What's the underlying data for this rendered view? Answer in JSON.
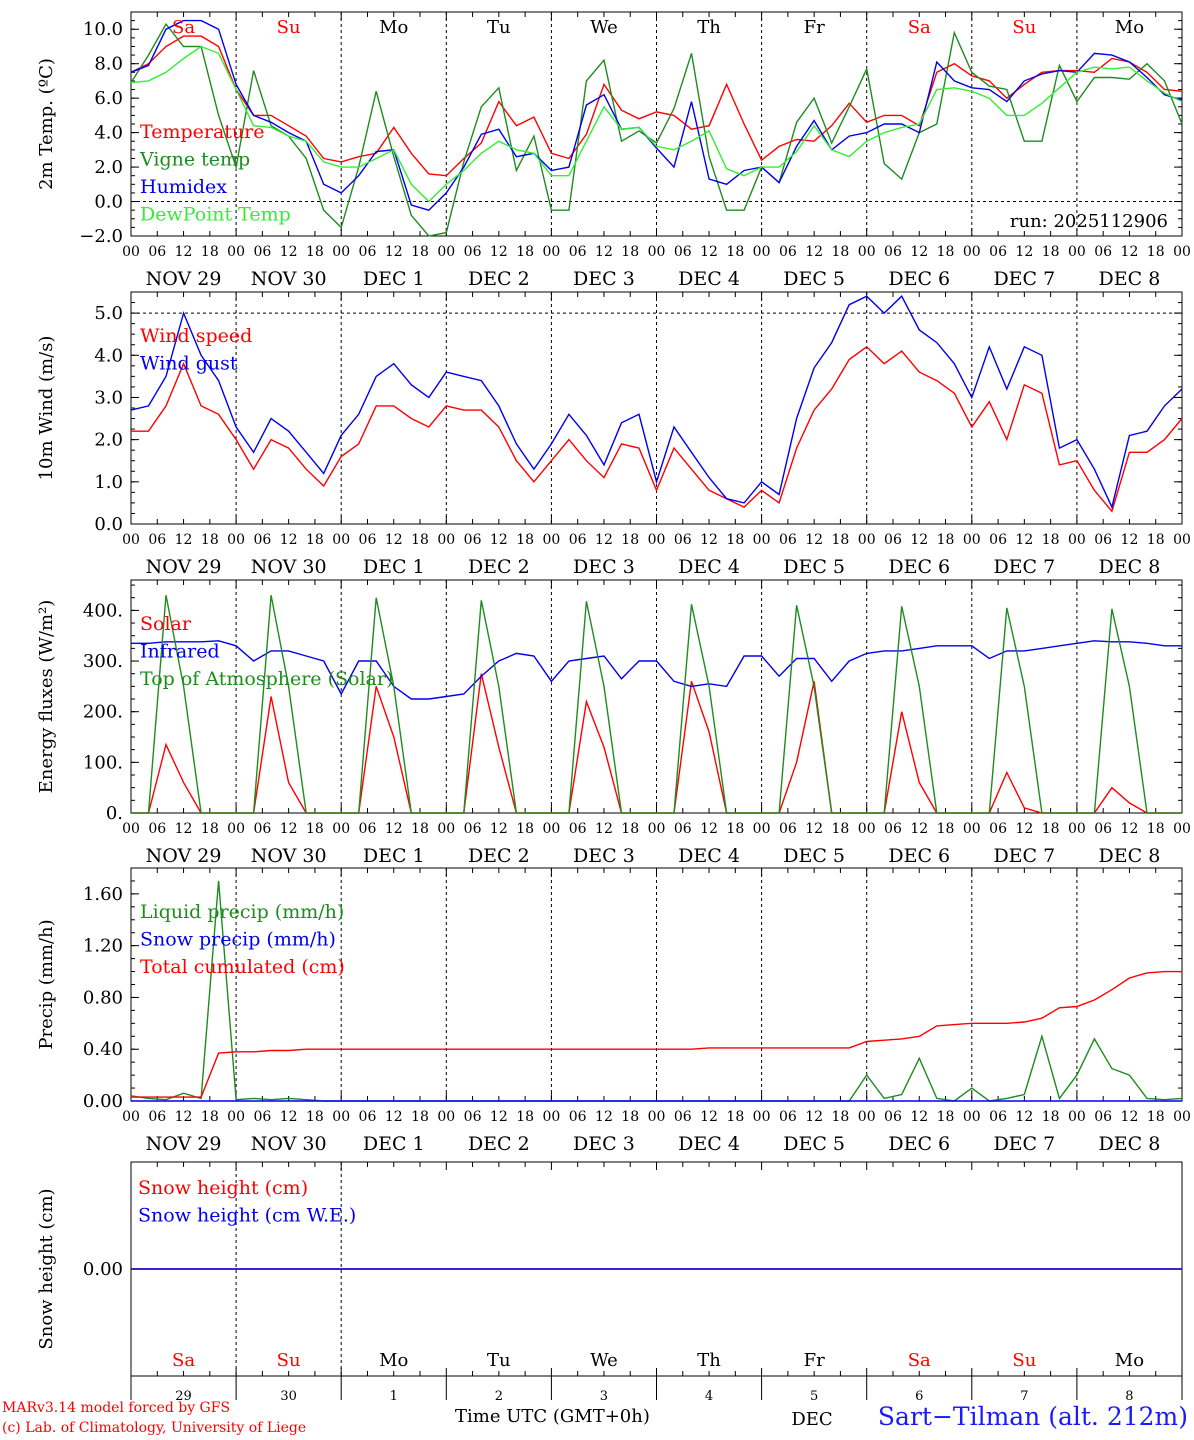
{
  "day_names": [
    {
      "label": "Sa",
      "color": "#ff0000"
    },
    {
      "label": "Su",
      "color": "#ff0000"
    },
    {
      "label": "Mo",
      "color": "#000000"
    },
    {
      "label": "Tu",
      "color": "#000000"
    },
    {
      "label": "We",
      "color": "#000000"
    },
    {
      "label": "Th",
      "color": "#000000"
    },
    {
      "label": "Fr",
      "color": "#000000"
    },
    {
      "label": "Sa",
      "color": "#ff0000"
    },
    {
      "label": "Su",
      "color": "#ff0000"
    },
    {
      "label": "Mo",
      "color": "#000000"
    }
  ],
  "date_labels": [
    "NOV 29",
    "NOV 30",
    "DEC  1",
    "DEC  2",
    "DEC  3",
    "DEC  4",
    "DEC  5",
    "DEC  6",
    "DEC  7",
    "DEC  8"
  ],
  "date_numbers": [
    "29",
    "30",
    "1",
    "2",
    "3",
    "4",
    "5",
    "6",
    "7",
    "8"
  ],
  "hour_labels": [
    "00",
    "06",
    "12",
    "18"
  ],
  "colors": {
    "red": "#ff0000",
    "green": "#1e8c1e",
    "blue": "#0000ee",
    "lightgreen": "#33ee33"
  },
  "chart_data": [
    {
      "type": "line",
      "id": "temp",
      "ylabel": "2m Temp. (ºC)",
      "ylim": [
        -2,
        11
      ],
      "yticks": [
        -2,
        0,
        2,
        4,
        6,
        8,
        10
      ],
      "ytick_labels": [
        "−2.0",
        "0.0",
        "2.0",
        "4.0",
        "6.0",
        "8.0",
        "10.0"
      ],
      "dashed_y": [
        0
      ],
      "x_hours_step": 6,
      "annotation": "run: 2025112906",
      "series": [
        {
          "name": "Temperature",
          "color": "#ff0000",
          "values": [
            7.5,
            8,
            9,
            9.6,
            9.6,
            9,
            6.5,
            5,
            5,
            4.4,
            3.8,
            2.5,
            2.3,
            2.6,
            2.8,
            4.3,
            2.8,
            1.6,
            1.5,
            2.5,
            3.4,
            5.8,
            4.4,
            4.9,
            2.8,
            2.5,
            3.9,
            6.8,
            5.3,
            4.8,
            5.2,
            5,
            4.2,
            4.4,
            6.8,
            4.5,
            2.4,
            3.2,
            3.6,
            3.5,
            4.4,
            5.7,
            4.6,
            5,
            5,
            4.4,
            7.5,
            8,
            7.3,
            7,
            6,
            6.8,
            7.5,
            7.6,
            7.6,
            7.5,
            8.3,
            8.1,
            7.5,
            6.5,
            6.4
          ]
        },
        {
          "name": "Vigne temp",
          "color": "#1e8c1e",
          "values": [
            6.9,
            8.5,
            10.3,
            9,
            9,
            5,
            2,
            7.6,
            4.4,
            3.8,
            2.5,
            -0.5,
            -1.5,
            2,
            6.4,
            2.6,
            -0.8,
            -2.5,
            -1.8,
            2.3,
            5.5,
            6.6,
            1.8,
            3.8,
            -0.5,
            -0.5,
            7,
            8.2,
            3.5,
            4.1,
            3.4,
            5.4,
            8.6,
            2.6,
            -0.5,
            -0.5,
            2,
            1.1,
            4.6,
            6,
            3.4,
            5.5,
            7.7,
            2.2,
            1.3,
            4,
            4.5,
            9.8,
            7.5,
            6.7,
            6.5,
            3.5,
            3.5,
            7.9,
            5.8,
            7.2,
            7.2,
            7.1,
            8,
            7,
            4.5
          ]
        },
        {
          "name": "Humidex",
          "color": "#0000ee",
          "values": [
            7.5,
            7.9,
            10,
            10.5,
            10.5,
            10,
            6.8,
            5,
            4.6,
            4,
            3.5,
            1,
            0.5,
            1.5,
            2.9,
            3,
            -0.2,
            -0.5,
            0.5,
            2,
            3.9,
            4.2,
            2.6,
            2.8,
            1.8,
            2,
            5.6,
            6.2,
            4.2,
            4.3,
            3.1,
            2,
            5.8,
            1.3,
            1,
            1.8,
            2,
            1.1,
            3.2,
            4.7,
            3,
            3.8,
            4,
            4.5,
            4.5,
            4,
            8.1,
            7,
            6.6,
            6.5,
            5.8,
            7,
            7.4,
            7.6,
            7.5,
            8.6,
            8.5,
            8.1,
            7.2,
            6.2,
            5.9
          ]
        },
        {
          "name": "DewPoint Temp",
          "color": "#33ee33",
          "values": [
            6.9,
            7,
            7.5,
            8.3,
            9,
            8.6,
            6.5,
            4.4,
            4.3,
            3.8,
            3.5,
            2.3,
            2,
            2,
            2.5,
            3,
            1,
            0,
            1,
            1.8,
            2.8,
            3.5,
            3,
            2.8,
            1.5,
            1.5,
            3.5,
            5.5,
            4.2,
            4.3,
            3.2,
            3,
            3.5,
            4.1,
            1.9,
            1.5,
            2,
            2,
            2.9,
            4.4,
            3,
            2.6,
            3.5,
            4,
            4.3,
            4.5,
            6.5,
            6.6,
            6.4,
            6,
            5,
            5,
            5.7,
            6.6,
            7.5,
            7.8,
            7.7,
            7.8,
            7,
            6.3,
            5.8
          ]
        }
      ]
    },
    {
      "type": "line",
      "id": "wind",
      "ylabel": "10m Wind (m/s)",
      "ylim": [
        0,
        5.5
      ],
      "yticks": [
        0,
        1,
        2,
        3,
        4,
        5
      ],
      "ytick_labels": [
        "0.0",
        "1.0",
        "2.0",
        "3.0",
        "4.0",
        "5.0"
      ],
      "dashed_y": [
        5
      ],
      "x_hours_step": 6,
      "series": [
        {
          "name": "Wind speed",
          "color": "#ff0000",
          "values": [
            2.2,
            2.2,
            2.8,
            3.8,
            2.8,
            2.6,
            2,
            1.3,
            2,
            1.8,
            1.3,
            0.9,
            1.6,
            1.9,
            2.8,
            2.8,
            2.5,
            2.3,
            2.8,
            2.7,
            2.7,
            2.3,
            1.5,
            1,
            1.5,
            2,
            1.5,
            1.1,
            1.9,
            1.8,
            0.8,
            1.8,
            1.3,
            0.8,
            0.6,
            0.4,
            0.8,
            0.5,
            1.8,
            2.7,
            3.2,
            3.9,
            4.2,
            3.8,
            4.1,
            3.6,
            3.4,
            3.1,
            2.3,
            2.9,
            2,
            3.3,
            3.1,
            1.4,
            1.5,
            0.8,
            0.3,
            1.7,
            1.7,
            2,
            2.5
          ]
        },
        {
          "name": "Wind gust",
          "color": "#0000ee",
          "values": [
            2.7,
            2.8,
            3.5,
            5,
            4,
            3.4,
            2.3,
            1.7,
            2.5,
            2.2,
            1.7,
            1.2,
            2.1,
            2.6,
            3.5,
            3.8,
            3.3,
            3,
            3.6,
            3.5,
            3.4,
            2.8,
            1.9,
            1.3,
            1.9,
            2.6,
            2.1,
            1.4,
            2.4,
            2.6,
            1,
            2.3,
            1.7,
            1.1,
            0.6,
            0.5,
            1,
            0.7,
            2.5,
            3.7,
            4.3,
            5.2,
            5.4,
            5,
            5.4,
            4.6,
            4.3,
            3.8,
            3,
            4.2,
            3.2,
            4.2,
            4,
            1.8,
            2,
            1.3,
            0.4,
            2.1,
            2.2,
            2.8,
            3.2
          ]
        }
      ]
    },
    {
      "type": "line",
      "id": "flux",
      "ylabel": "Energy fluxes (W/m²)",
      "ylim": [
        0,
        460
      ],
      "yticks": [
        0,
        100,
        200,
        300,
        400
      ],
      "ytick_labels": [
        "0.",
        "100.",
        "200.",
        "300.",
        "400."
      ],
      "dashed_y": [],
      "x_hours_step": 6,
      "series": [
        {
          "name": "Solar",
          "color": "#ff0000",
          "values": [
            0,
            0,
            135,
            60,
            0,
            0,
            0,
            0,
            230,
            60,
            0,
            0,
            0,
            0,
            250,
            150,
            0,
            0,
            0,
            0,
            275,
            130,
            0,
            0,
            0,
            0,
            220,
            130,
            0,
            0,
            0,
            0,
            260,
            160,
            0,
            0,
            0,
            0,
            100,
            260,
            0,
            0,
            0,
            0,
            200,
            60,
            0,
            0,
            0,
            0,
            80,
            10,
            0,
            0,
            0,
            0,
            50,
            20,
            0,
            0,
            0
          ]
        },
        {
          "name": "Infrared",
          "color": "#0000ee",
          "values": [
            335,
            335,
            338,
            338,
            338,
            340,
            330,
            300,
            320,
            320,
            310,
            300,
            235,
            300,
            300,
            250,
            225,
            225,
            230,
            235,
            270,
            300,
            315,
            310,
            260,
            300,
            305,
            310,
            265,
            300,
            300,
            260,
            250,
            255,
            250,
            310,
            310,
            270,
            305,
            305,
            260,
            300,
            315,
            320,
            320,
            325,
            330,
            330,
            330,
            305,
            320,
            320,
            325,
            330,
            335,
            340,
            338,
            338,
            335,
            330,
            330
          ]
        },
        {
          "name": "Top of Atmosphere (Solar)",
          "color": "#1e8c1e",
          "values": [
            0,
            0,
            430,
            250,
            0,
            0,
            0,
            0,
            430,
            250,
            0,
            0,
            0,
            0,
            425,
            250,
            0,
            0,
            0,
            0,
            420,
            250,
            0,
            0,
            0,
            0,
            418,
            250,
            0,
            0,
            0,
            0,
            412,
            250,
            0,
            0,
            0,
            0,
            410,
            250,
            0,
            0,
            0,
            0,
            408,
            250,
            0,
            0,
            0,
            0,
            405,
            250,
            0,
            0,
            0,
            0,
            403,
            250,
            0,
            0,
            0
          ]
        }
      ]
    },
    {
      "type": "line",
      "id": "precip",
      "ylabel": "Precip (mm/h)",
      "ylim": [
        0,
        1.8
      ],
      "yticks": [
        0,
        0.4,
        0.8,
        1.2,
        1.6
      ],
      "ytick_labels": [
        "0.00",
        "0.40",
        "0.80",
        "1.20",
        "1.60"
      ],
      "dashed_y": [],
      "x_hours_step": 6,
      "series": [
        {
          "name": "Liquid precip (mm/h)",
          "color": "#1e8c1e",
          "values": [
            0.04,
            0.02,
            0.01,
            0.06,
            0.02,
            1.7,
            0.01,
            0.02,
            0.01,
            0.02,
            0.01,
            0,
            0,
            0,
            0,
            0,
            0,
            0,
            0,
            0,
            0,
            0,
            0,
            0,
            0,
            0,
            0,
            0,
            0,
            0,
            0,
            0,
            0,
            0,
            0,
            0,
            0,
            0,
            0,
            0,
            0,
            0,
            0.2,
            0.02,
            0.05,
            0.33,
            0.02,
            0,
            0.1,
            0,
            0.02,
            0.05,
            0.5,
            0.02,
            0.2,
            0.48,
            0.25,
            0.2,
            0.02,
            0.01,
            0.02
          ]
        },
        {
          "name": "Snow precip (mm/h)",
          "color": "#0000ee",
          "values": [
            0,
            0,
            0,
            0,
            0,
            0,
            0,
            0,
            0,
            0,
            0,
            0,
            0,
            0,
            0,
            0,
            0,
            0,
            0,
            0,
            0,
            0,
            0,
            0,
            0,
            0,
            0,
            0,
            0,
            0,
            0,
            0,
            0,
            0,
            0,
            0,
            0,
            0,
            0,
            0,
            0,
            0,
            0,
            0,
            0,
            0,
            0,
            0,
            0,
            0,
            0,
            0,
            0,
            0,
            0,
            0,
            0,
            0,
            0,
            0,
            0
          ]
        },
        {
          "name": "Total cumulated (cm)",
          "color": "#ff0000",
          "values": [
            0.03,
            0.03,
            0.03,
            0.03,
            0.03,
            0.37,
            0.38,
            0.38,
            0.39,
            0.39,
            0.4,
            0.4,
            0.4,
            0.4,
            0.4,
            0.4,
            0.4,
            0.4,
            0.4,
            0.4,
            0.4,
            0.4,
            0.4,
            0.4,
            0.4,
            0.4,
            0.4,
            0.4,
            0.4,
            0.4,
            0.4,
            0.4,
            0.4,
            0.41,
            0.41,
            0.41,
            0.41,
            0.41,
            0.41,
            0.41,
            0.41,
            0.41,
            0.46,
            0.47,
            0.48,
            0.5,
            0.58,
            0.59,
            0.6,
            0.6,
            0.6,
            0.61,
            0.64,
            0.72,
            0.73,
            0.78,
            0.86,
            0.95,
            0.99,
            1,
            1
          ]
        }
      ]
    },
    {
      "type": "line",
      "id": "snow",
      "ylabel": "Snow height (cm)",
      "ylim": [
        -1,
        1
      ],
      "yticks": [
        0
      ],
      "ytick_labels": [
        "0.00"
      ],
      "dashed_y": [],
      "x_hours_step": 6,
      "series": [
        {
          "name": "Snow height (cm)",
          "color": "#ff0000",
          "values": [
            0,
            0
          ]
        },
        {
          "name": "Snow height (cm W.E.)",
          "color": "#0000ee",
          "values": [
            0,
            0
          ]
        }
      ]
    }
  ],
  "footer": {
    "model_line": "MARv3.14 model forced by GFS",
    "credit_line": "(c) Lab. of Climatology, University of Liege",
    "xlabel": "Time UTC (GMT+0h)",
    "truncated_label": "DEC",
    "station": "Sart−Tilman (alt. 212m)"
  }
}
